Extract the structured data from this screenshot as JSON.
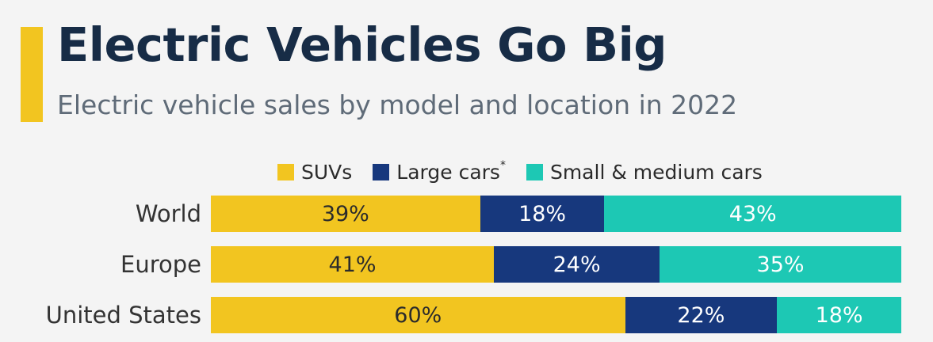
{
  "chart_data": {
    "type": "bar",
    "orientation": "horizontal",
    "stacked": true,
    "title": "Electric Vehicles Go Big",
    "subtitle": "Electric vehicle sales by model and location in 2022",
    "categories": [
      "World",
      "Europe",
      "United States"
    ],
    "series": [
      {
        "name": "SUVs",
        "label_html": "SUVs",
        "color": "#f2c520",
        "text_color": "#2b2b2b",
        "values": [
          39,
          41,
          60
        ]
      },
      {
        "name": "Large cars*",
        "label_html": "Large cars<sup>*</sup>",
        "color": "#17387d",
        "text_color": "#ffffff",
        "values": [
          18,
          24,
          22
        ]
      },
      {
        "name": "Small & medium cars",
        "label_html": "Small &amp; medium cars",
        "color": "#1dc8b4",
        "text_color": "#ffffff",
        "values": [
          43,
          35,
          18
        ]
      }
    ],
    "value_suffix": "%",
    "xlim": [
      0,
      100
    ],
    "legend_position": "top",
    "grid": false
  },
  "accent_color": "#f2c520"
}
